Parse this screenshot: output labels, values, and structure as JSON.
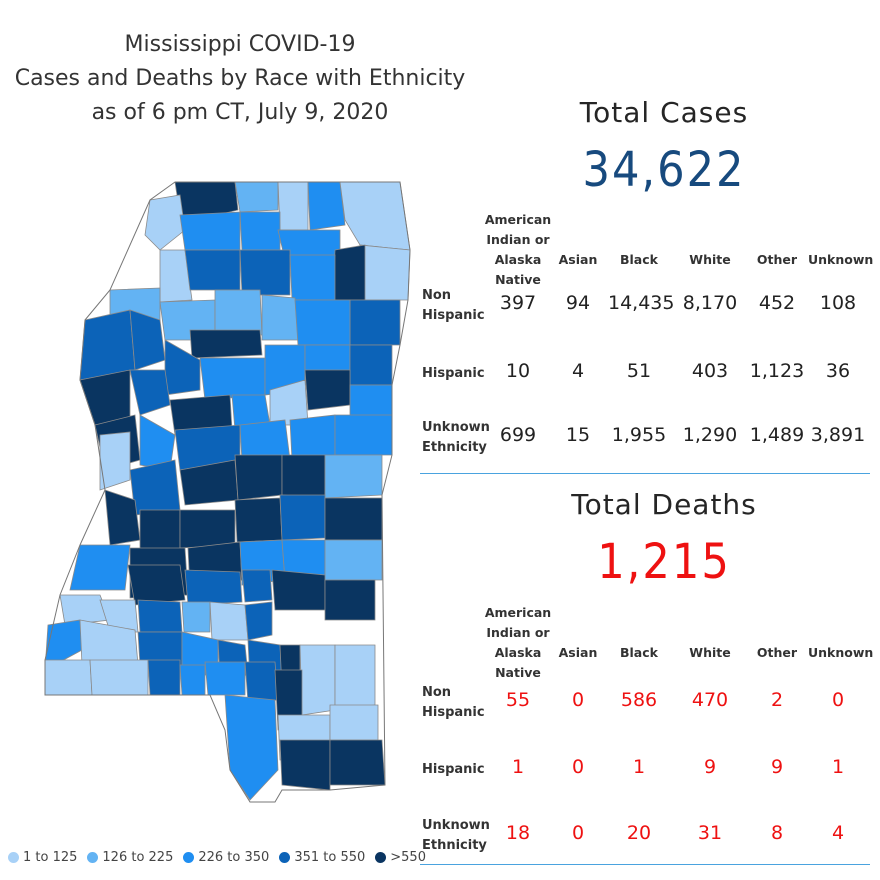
{
  "title_lines": [
    "Mississippi COVID-19",
    "Cases and Deaths by Race with Ethnicity",
    "as of 6 pm CT, July 9, 2020"
  ],
  "legend": [
    {
      "label": "1 to 125",
      "color": "#a8d1f7"
    },
    {
      "label": "126 to 225",
      "color": "#63b3f3"
    },
    {
      "label": "226 to 350",
      "color": "#1f8ef1"
    },
    {
      "label": "351 to 550",
      "color": "#0c63b8"
    },
    {
      "label": ">550",
      "color": "#0a3561"
    }
  ],
  "cases": {
    "heading": "Total Cases",
    "total": "34,622",
    "total_color": "#174a7e",
    "value_color": "#222222",
    "columns": [
      "American Indian or Alaska Native",
      "Asian",
      "Black",
      "White",
      "Other",
      "Unknown"
    ],
    "rows": [
      {
        "label": "Non Hispanic",
        "values": [
          "397",
          "94",
          "14,435",
          "8,170",
          "452",
          "108"
        ]
      },
      {
        "label": "Hispanic",
        "values": [
          "10",
          "4",
          "51",
          "403",
          "1,123",
          "36"
        ]
      },
      {
        "label": "Unknown Ethnicity",
        "values": [
          "699",
          "15",
          "1,955",
          "1,290",
          "1,489",
          "3,891"
        ]
      }
    ]
  },
  "deaths": {
    "heading": "Total Deaths",
    "total": "1,215",
    "total_color": "#ee1111",
    "value_color": "#ee1111",
    "columns": [
      "American Indian or Alaska Native",
      "Asian",
      "Black",
      "White",
      "Other",
      "Unknown"
    ],
    "rows": [
      {
        "label": "Non Hispanic",
        "values": [
          "55",
          "0",
          "586",
          "470",
          "2",
          "0"
        ]
      },
      {
        "label": "Hispanic",
        "values": [
          "1",
          "0",
          "1",
          "9",
          "9",
          "1"
        ]
      },
      {
        "label": "Unknown Ethnicity",
        "values": [
          "18",
          "0",
          "20",
          "31",
          "8",
          "4"
        ]
      }
    ]
  }
}
